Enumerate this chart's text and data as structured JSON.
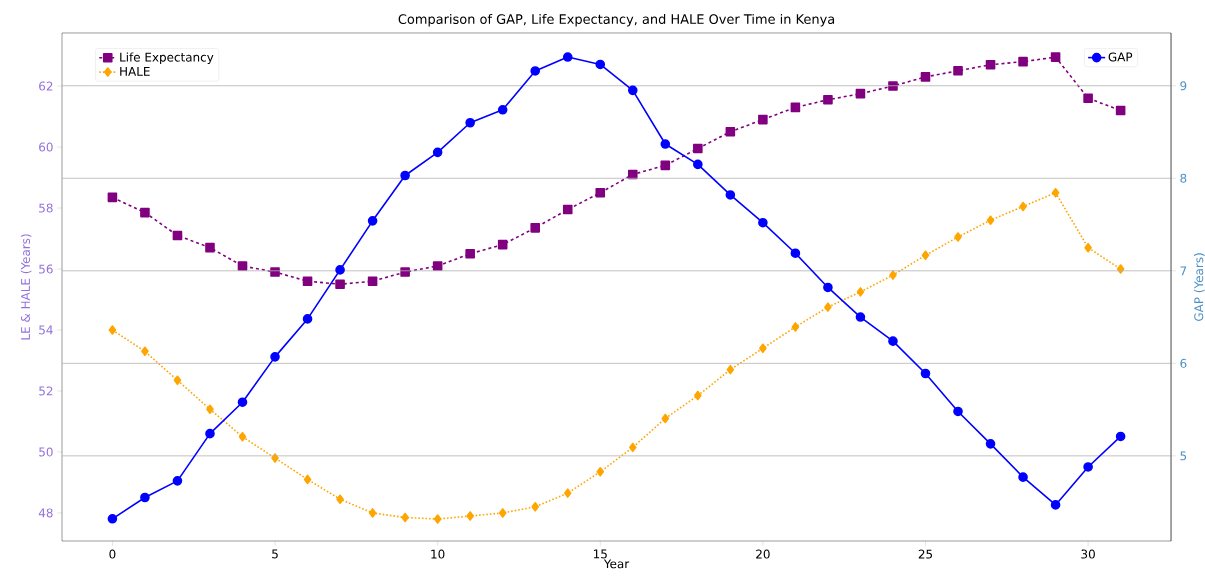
{
  "chart_data": {
    "type": "line",
    "title": "Comparison of GAP, Life Expectancy, and HALE Over Time in Kenya",
    "xlabel": "Year",
    "ylabel": "LE & HALE (Years)",
    "y2label": "GAP (Years)",
    "x": [
      0,
      1,
      2,
      3,
      4,
      5,
      6,
      7,
      8,
      9,
      10,
      11,
      12,
      13,
      14,
      15,
      16,
      17,
      18,
      19,
      20,
      21,
      22,
      23,
      24,
      25,
      26,
      27,
      28,
      29,
      30,
      31
    ],
    "series": [
      {
        "name": "Life Expectancy",
        "color": "#800080",
        "marker": "square",
        "line_style": "dashed",
        "values": [
          58.35,
          57.85,
          57.1,
          56.7,
          56.1,
          55.9,
          55.6,
          55.5,
          55.6,
          55.9,
          56.1,
          56.5,
          56.8,
          57.35,
          57.95,
          58.5,
          59.1,
          59.4,
          59.95,
          60.5,
          60.9,
          61.3,
          61.55,
          61.75,
          62.0,
          62.3,
          62.5,
          62.7,
          62.8,
          62.95,
          61.6,
          61.2
        ]
      },
      {
        "name": "HALE",
        "color": "#ffa500",
        "marker": "diamond",
        "line_style": "dotted",
        "values": [
          54.0,
          53.3,
          52.35,
          51.4,
          50.5,
          49.8,
          49.1,
          48.45,
          48.0,
          47.85,
          47.8,
          47.9,
          48.0,
          48.2,
          48.65,
          49.35,
          50.15,
          51.1,
          51.85,
          52.7,
          53.4,
          54.1,
          54.75,
          55.25,
          55.8,
          56.45,
          57.05,
          57.6,
          58.05,
          58.5,
          56.7,
          56.0
        ]
      },
      {
        "name": "GAP",
        "color": "#0000ff",
        "marker": "circle",
        "line_style": "solid",
        "axis": "y2",
        "values": [
          4.32,
          4.55,
          4.73,
          5.24,
          5.58,
          6.07,
          6.48,
          7.01,
          7.54,
          8.03,
          8.28,
          8.6,
          8.74,
          9.16,
          9.31,
          9.23,
          8.95,
          8.37,
          8.15,
          7.82,
          7.52,
          7.19,
          6.82,
          6.5,
          6.24,
          5.89,
          5.48,
          5.13,
          4.77,
          4.47,
          4.88,
          5.21
        ]
      }
    ],
    "xlim": [
      -1.55,
      32.55
    ],
    "xticks": [
      0,
      5,
      10,
      15,
      20,
      25,
      30
    ],
    "ylim": [
      47.08,
      63.74
    ],
    "yticks": [
      48,
      50,
      52,
      54,
      56,
      58,
      60,
      62
    ],
    "y2lim": [
      4.08,
      9.57
    ],
    "y2ticks": [
      5,
      6,
      7,
      8,
      9
    ],
    "grid": "y",
    "legend": "top left"
  }
}
